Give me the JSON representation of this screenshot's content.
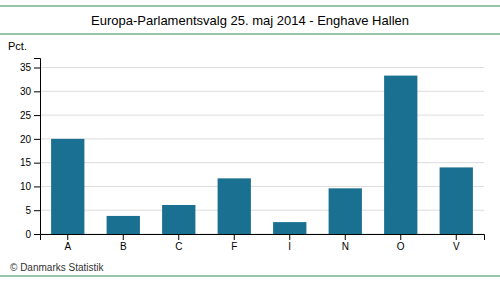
{
  "chart_data": {
    "type": "bar",
    "title": "Europa-Parlamentsvalg 25. maj 2014 - Enghave Hallen",
    "categories": [
      "A",
      "B",
      "C",
      "F",
      "I",
      "N",
      "O",
      "V"
    ],
    "values": [
      20.0,
      3.8,
      6.1,
      11.7,
      2.5,
      9.6,
      33.3,
      14.0
    ],
    "color": "#1a7090",
    "ylabel": "Pct.",
    "ylim": [
      0,
      37
    ],
    "yticks": [
      0,
      5,
      10,
      15,
      20,
      25,
      30,
      35
    ],
    "grid": true,
    "annotations": [
      "© Danmarks Statistik"
    ]
  }
}
